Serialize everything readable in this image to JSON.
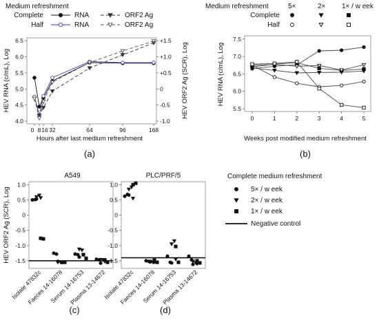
{
  "panel_letters": [
    "(a)",
    "(b)",
    "(c)",
    "(d)"
  ],
  "chart_data": [
    {
      "type": "line",
      "panel": "(a)",
      "xlabel": "Hours after last medium refreshment",
      "ylabel": "HEV RNA (c/mL), Log",
      "y2label": "HEV ORF2 Ag (SCR), Log",
      "legend_title": "Medium  refreshment",
      "legend_rows": [
        "Complete",
        "Half"
      ],
      "legend_cols": [
        "RNA",
        "ORF2 Ag"
      ],
      "x_ticks": [
        "0",
        "8",
        "16",
        "32",
        "64",
        "96",
        "168"
      ],
      "x_tick_values": [
        0,
        8,
        16,
        32,
        64,
        96,
        168
      ],
      "ylim": [
        4.0,
        6.5
      ],
      "y_ticks": [
        "4.0",
        "4.5",
        "5.0",
        "5.5",
        "6.0",
        "6.5"
      ],
      "y2lim": [
        -1.0,
        1.5
      ],
      "y2_ticks": [
        "-1.0",
        "-0.5",
        "0",
        "+0.5",
        "+1.0",
        "+1.5"
      ],
      "x": [
        0,
        8,
        16,
        32,
        64,
        96,
        168
      ],
      "series": [
        {
          "name": "RNA",
          "group": "Complete",
          "axis": "left",
          "marker": "filled-circle",
          "dash": "solid",
          "color": "#111111",
          "values": [
            5.35,
            4.45,
            4.72,
            5.25,
            5.82,
            5.8,
            5.8
          ]
        },
        {
          "name": "RNA",
          "group": "Half",
          "axis": "left",
          "marker": "open-circle",
          "dash": "solid",
          "color": "#3d3f9e",
          "values": [
            4.76,
            4.18,
            4.78,
            5.35,
            5.85,
            5.82,
            5.82
          ]
        },
        {
          "name": "ORF2 Ag",
          "group": "Complete",
          "axis": "right",
          "marker": "filled-triangle",
          "dash": "dashed",
          "color": "#333333",
          "values": [
            -0.3,
            -0.82,
            -0.58,
            -0.07,
            0.65,
            1.06,
            1.43
          ]
        },
        {
          "name": "ORF2 Ag",
          "group": "Half",
          "axis": "right",
          "marker": "open-triangle",
          "dash": "dashed",
          "color": "#555555",
          "values": [
            -0.3,
            -0.91,
            -0.39,
            0.21,
            0.82,
            1.18,
            1.49
          ]
        }
      ]
    },
    {
      "type": "line",
      "panel": "(b)",
      "xlabel": "Weeks post modified medium refreshment",
      "ylabel": "HEV RNA (c/mL), Log",
      "legend_title": "Medium  refreshment",
      "legend_cols": [
        "5×",
        "2×",
        "1× / w eek"
      ],
      "legend_rows": [
        "Complete",
        "Half"
      ],
      "x_ticks": [
        "0",
        "1",
        "2",
        "3",
        "4",
        "5"
      ],
      "ylim": [
        5.5,
        7.5
      ],
      "y_ticks": [
        "5.5",
        "6.0",
        "6.5",
        "7.0",
        "7.5"
      ],
      "x": [
        0,
        1,
        2,
        3,
        4,
        5
      ],
      "series": [
        {
          "name": "5×",
          "group": "Complete",
          "marker": "filled-circle",
          "values": [
            6.65,
            6.72,
            6.76,
            7.16,
            7.18,
            7.27
          ]
        },
        {
          "name": "2×",
          "group": "Complete",
          "marker": "filled-triangle",
          "values": [
            6.67,
            6.6,
            6.53,
            6.54,
            6.55,
            6.58
          ]
        },
        {
          "name": "1× / w eek",
          "group": "Complete",
          "marker": "filled-square",
          "values": [
            6.7,
            6.78,
            6.82,
            6.66,
            6.6,
            6.64
          ]
        },
        {
          "name": "5×",
          "group": "Half",
          "marker": "open-circle",
          "values": [
            6.75,
            6.41,
            6.23,
            6.13,
            6.17,
            6.28
          ]
        },
        {
          "name": "2×",
          "group": "Half",
          "marker": "open-triangle",
          "values": [
            6.75,
            6.77,
            6.72,
            6.74,
            6.61,
            6.76
          ]
        },
        {
          "name": "1× / w eek",
          "group": "Half",
          "marker": "open-square",
          "values": [
            6.78,
            6.8,
            6.85,
            6.08,
            5.61,
            5.53
          ]
        }
      ]
    },
    {
      "type": "scatter",
      "panel": "(c)",
      "title": "A549",
      "ylabel": "HEV ORF2 Ag (SCR), Log",
      "categories": [
        "Isolate 47832c",
        "Faeces 14-16078",
        "Serum 14-16753",
        "Plasma 13-14672"
      ],
      "ylim": [
        -1.75,
        1.1
      ],
      "y_ticks": [
        "1.0",
        "0.5",
        "0",
        "-0.5",
        "-1.0",
        "-1.5"
      ],
      "negative_control": -1.5,
      "series": [
        {
          "name": "5× / w eek",
          "marker": "filled-circle",
          "values": [
            [
              0.5,
              0.51,
              0.53
            ],
            [
              -1.25,
              -1.28,
              -1.52
            ],
            [
              -1.28,
              -1.3,
              -1.38
            ],
            [
              -1.45,
              -1.47,
              -1.58
            ]
          ]
        },
        {
          "name": "2× / w eek",
          "marker": "filled-triangle",
          "values": [
            [
              0.6,
              0.65,
              0.57
            ],
            [
              -1.55,
              -1.55,
              -1.55
            ],
            [
              -1.12,
              -1.15,
              -1.3
            ],
            [
              -1.46,
              -1.47,
              -1.52
            ]
          ]
        },
        {
          "name": "1× / w eek",
          "marker": "filled-square",
          "values": [
            [
              -0.76,
              -0.78
            ],
            [
              -1.55,
              -1.55
            ],
            [
              -1.3,
              -1.42
            ],
            [
              -1.47,
              -1.55
            ]
          ]
        }
      ]
    },
    {
      "type": "scatter",
      "panel": "(d)",
      "title": "PLC/PRF/5",
      "categories": [
        "Isolate 47832c",
        "Faeces 14-16078",
        "Serum 14-16753",
        "Plasma 13-14672"
      ],
      "ylim": [
        -1.75,
        1.1
      ],
      "y_ticks": [
        "1.0",
        "0.5",
        "0",
        "-0.5",
        "-1.0",
        "-1.5"
      ],
      "negative_control": -1.4,
      "series": [
        {
          "name": "5× / w eek",
          "marker": "filled-circle",
          "values": [
            [
              0.62,
              0.68,
              0.66
            ],
            [
              -1.5,
              -1.52,
              -1.54
            ],
            [
              -1.35,
              -1.55,
              -1.57
            ],
            [
              -1.35,
              -1.47,
              -1.62
            ]
          ]
        },
        {
          "name": "2× / w eek",
          "marker": "filled-triangle",
          "values": [
            [
              0.85,
              0.92,
              0.55
            ],
            [
              -1.52,
              -1.55,
              -1.55
            ],
            [
              -0.95,
              -0.85,
              -1.45
            ],
            [
              -1.52,
              -1.57,
              -1.6
            ]
          ]
        },
        {
          "name": "1× / w eek",
          "marker": "filled-square",
          "values": [
            [
              1.0,
              1.05
            ],
            [
              -1.48,
              -1.55
            ],
            [
              -1.03,
              -1.55
            ],
            [
              -1.5,
              -1.57
            ]
          ]
        }
      ]
    }
  ],
  "legend_cd": {
    "title": "Complete medium  refreshment",
    "items": [
      {
        "label": "5× / w eek",
        "marker": "filled-circle"
      },
      {
        "label": "2× / w eek",
        "marker": "filled-triangle"
      },
      {
        "label": "1× / w eek",
        "marker": "filled-square"
      },
      {
        "label": "Negative control",
        "marker": "line"
      }
    ]
  }
}
